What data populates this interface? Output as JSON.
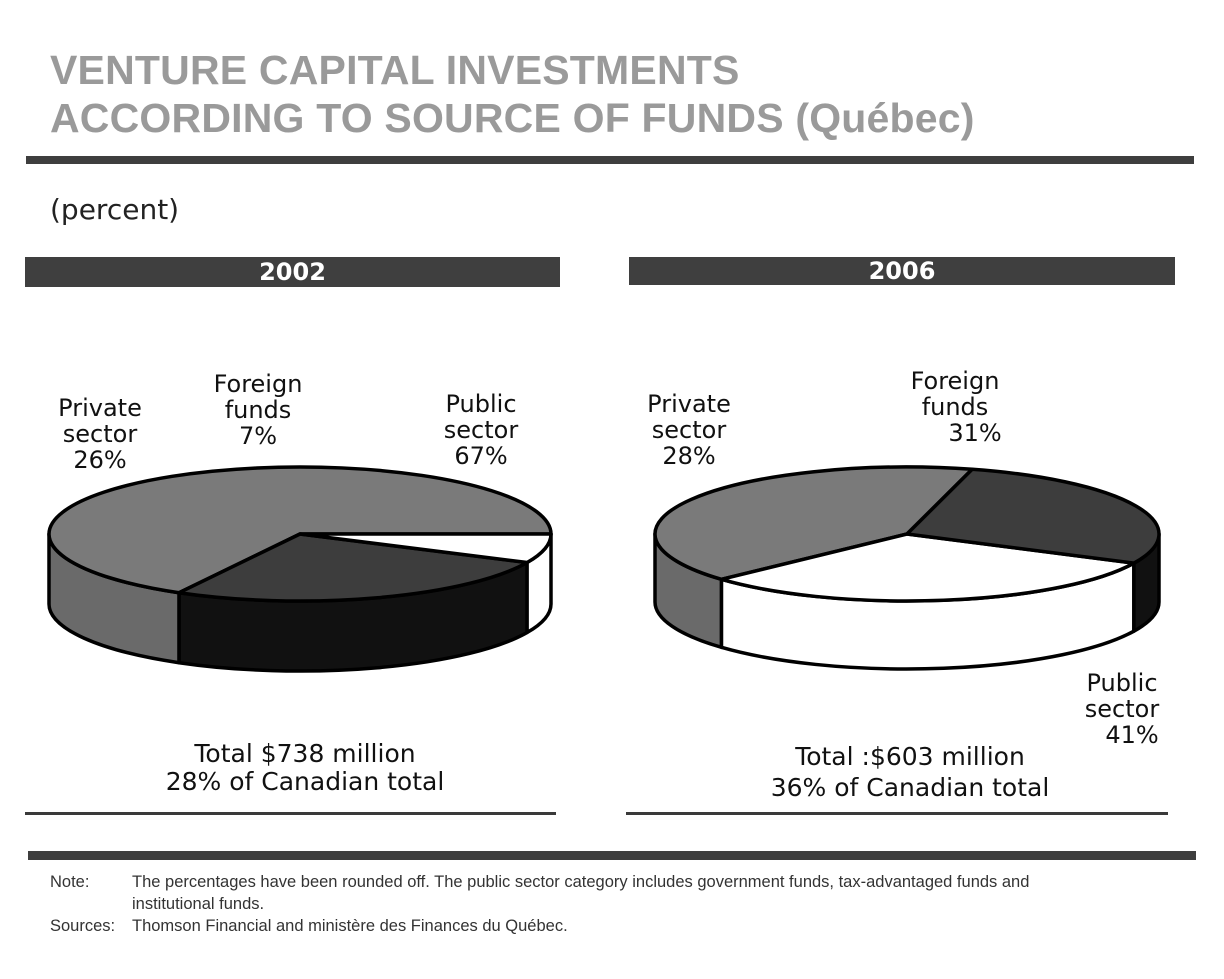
{
  "title": {
    "line1": "VENTURE CAPITAL INVESTMENTS",
    "line2": "ACCORDING TO SOURCE OF FUNDS (Québec)"
  },
  "unit_label": "(percent)",
  "colors": {
    "public_sector": "#7a7a7a",
    "private_sector": "#3d3d3d",
    "foreign_funds": "#ffffff",
    "bars": "#3f3f3f",
    "title": "#9a9a9a"
  },
  "chart_data": [
    {
      "type": "pie",
      "title": "2002",
      "categories": [
        "Public sector",
        "Private sector",
        "Foreign funds"
      ],
      "values": [
        67,
        26,
        7
      ],
      "labels": {
        "public": [
          "Public",
          "sector",
          "67%"
        ],
        "private": [
          "Private",
          "sector",
          "26%"
        ],
        "foreign": [
          "Foreign",
          "funds",
          "7%"
        ]
      },
      "total_line1": "Total   $738 million",
      "total_line2": "28% of Canadian total"
    },
    {
      "type": "pie",
      "title": "2006",
      "categories": [
        "Public sector",
        "Private sector",
        "Foreign funds"
      ],
      "values": [
        41,
        28,
        31
      ],
      "labels": {
        "public": [
          "Public",
          "sector",
          "41%"
        ],
        "private": [
          "Private",
          "sector",
          "28%"
        ],
        "foreign": [
          "Foreign",
          "funds",
          "31%"
        ]
      },
      "total_line1": "Total :$603 million",
      "total_line2": "36% of Canadian total"
    }
  ],
  "notes": {
    "note_key": "Note:",
    "note_text": "The percentages have been rounded off.  The public sector category includes government funds, tax-advantaged funds and institutional funds.",
    "sources_key": "Sources:",
    "sources_text": "Thomson Financial and ministère des Finances du Québec."
  }
}
